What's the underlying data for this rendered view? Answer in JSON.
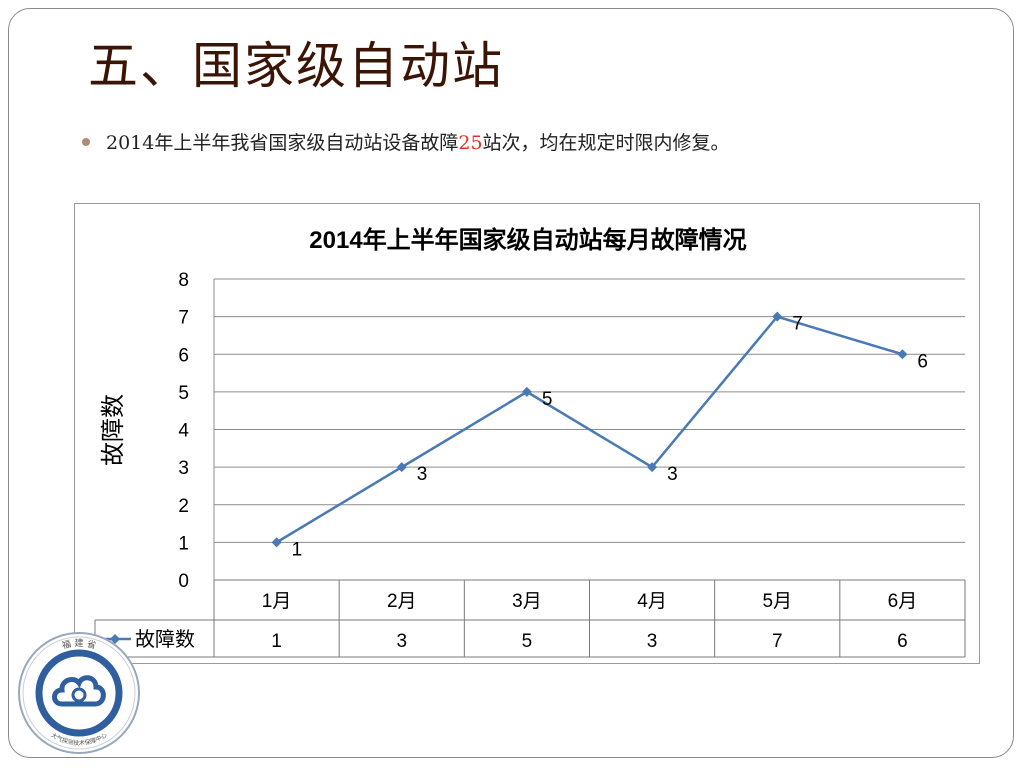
{
  "slide": {
    "title": "五、国家级自动站",
    "bullet": {
      "before": "2014年上半年我省国家级自动站设备故障",
      "number": "25",
      "after": "站次，均在规定时限内修复。"
    }
  },
  "chart_data": {
    "type": "line",
    "title": "2014年上半年国家级自动站每月故障情况",
    "xlabel": "",
    "ylabel": "故障数",
    "categories": [
      "1月",
      "2月",
      "3月",
      "4月",
      "5月",
      "6月"
    ],
    "series": [
      {
        "name": "故障数",
        "values": [
          1,
          3,
          5,
          3,
          7,
          6
        ]
      }
    ],
    "ylim": [
      0,
      8
    ],
    "yticks": [
      0,
      1,
      2,
      3,
      4,
      5,
      6,
      7,
      8
    ],
    "grid": true,
    "data_labels": true,
    "data_table": true,
    "colors": {
      "line": "#4a7ab5",
      "grid": "#8c8c8c"
    }
  },
  "logo": {
    "top_text": "福 建 省",
    "bottom_text": "大气探测技术保障中心"
  }
}
